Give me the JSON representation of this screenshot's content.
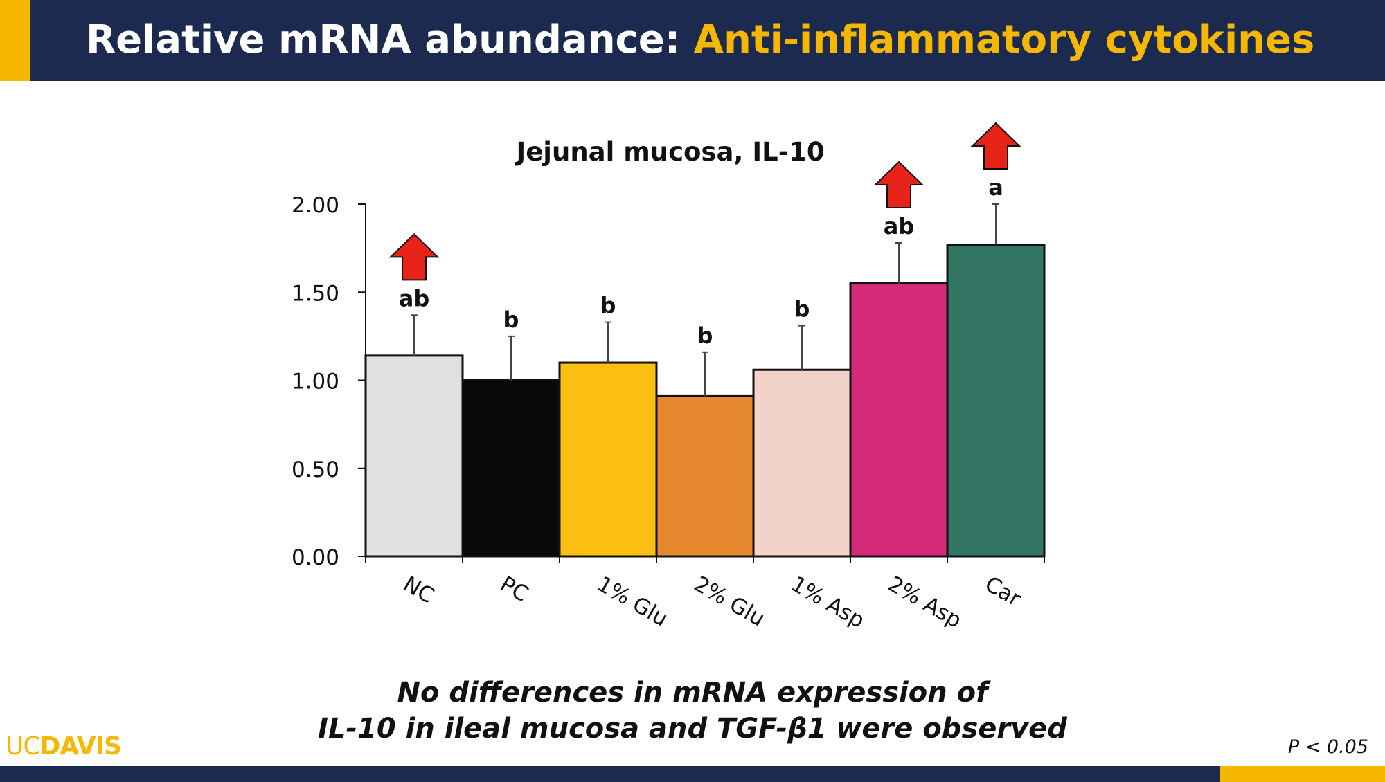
{
  "header": {
    "title_part1": "Relative mRNA abundance:",
    "title_part2": "Anti-inflammatory cytokines"
  },
  "colors": {
    "navy": "#1b2a4e",
    "gold": "#f5b700",
    "arrow_red": "#e8231a"
  },
  "chart_data": {
    "type": "bar",
    "title": "Jejunal mucosa, IL-10",
    "xlabel": "",
    "ylabel": "",
    "ylim": [
      0,
      2
    ],
    "yticks": [
      "0.00",
      "0.50",
      "1.00",
      "1.50",
      "2.00"
    ],
    "categories": [
      "NC",
      "PC",
      "1% Glu",
      "2% Glu",
      "1% Asp",
      "2% Asp",
      "Car"
    ],
    "values": [
      1.14,
      1.0,
      1.1,
      0.91,
      1.06,
      1.55,
      1.77
    ],
    "error_upper": [
      0.23,
      0.25,
      0.23,
      0.25,
      0.25,
      0.23,
      0.23
    ],
    "significance_letters": [
      "ab",
      "b",
      "b",
      "b",
      "b",
      "ab",
      "a"
    ],
    "bar_colors": [
      "#e0e0e0",
      "#0a0a0a",
      "#fdbf11",
      "#e5882e",
      "#f2d2c9",
      "#d42a78",
      "#327562"
    ],
    "up_arrows": [
      "NC",
      "2% Asp",
      "Car"
    ],
    "grid": false,
    "legend": "none"
  },
  "conclusion": {
    "line1": "No differences in mRNA expression of",
    "line2": "IL-10 in ileal mucosa and TGF-β1 were observed"
  },
  "footer": {
    "logo_uc": "UC",
    "logo_davis": "DAVIS",
    "p_note": "P < 0.05"
  }
}
